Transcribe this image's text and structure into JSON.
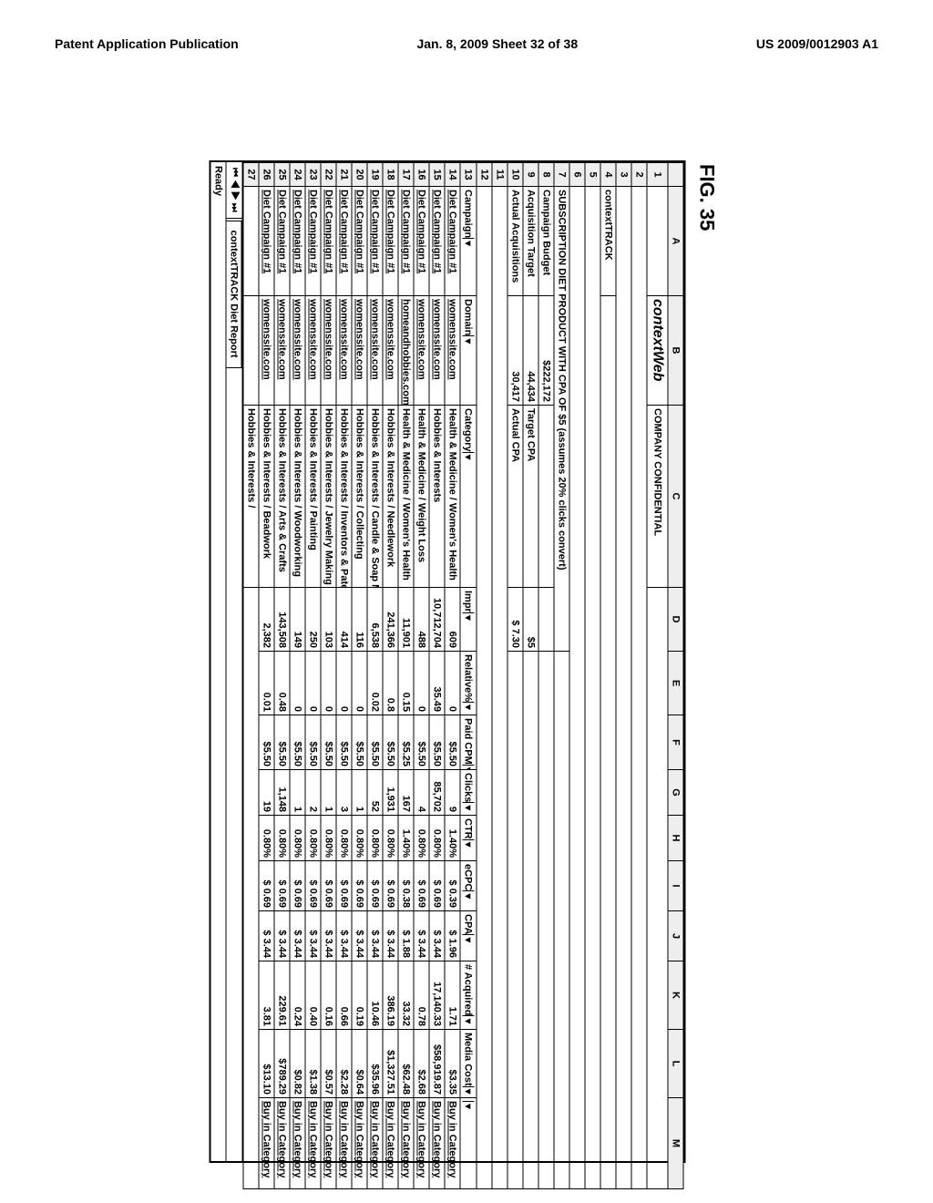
{
  "header": {
    "left": "Patent Application Publication",
    "center": "Jan. 8, 2009  Sheet 32 of 38",
    "right": "US 2009/0012903 A1"
  },
  "figure_label": "FIG. 35",
  "column_letters": [
    "A",
    "B",
    "C",
    "D",
    "E",
    "F",
    "G",
    "H",
    "I",
    "J",
    "K",
    "L",
    "M"
  ],
  "top_block": {
    "brand": "contextWeb",
    "confidential": "COMPANY CONFIDENTIAL",
    "product": "contextTRACK",
    "title": "SUBSCRIPTION DIET PRODUCT WITH CPA OF $5 (assumes 20% clicks convert)",
    "rows": [
      {
        "n": "8",
        "label": "Campaign Budget",
        "val": "$222,172"
      },
      {
        "n": "9",
        "label": "Acquisition Target",
        "val": "44,434",
        "c": "Target CPA",
        "d": "$5"
      },
      {
        "n": "10",
        "label": "Actual Acquisitions",
        "val": "30,417",
        "c": "Actual CPA",
        "d": "$   7.30"
      }
    ]
  },
  "columns_row": {
    "n": "13",
    "labels": [
      "Campaign",
      "Domain",
      "Category",
      "Impr",
      "Relative%",
      "Paid CPM",
      "Clicks",
      "CTR",
      "eCPC",
      "CPA",
      "# Acquired",
      "Media Cost",
      ""
    ]
  },
  "data_rows": [
    {
      "n": "14",
      "camp": "Diet Campaign #1",
      "dom": "womenssite.com",
      "cat": "Health & Medicine / Women's Health",
      "impr": "609",
      "rel": "0",
      "cpm": "$5.50",
      "clk": "9",
      "ctr": "1.40%",
      "ecpc": "$  0.39",
      "cpa": "$   1.96",
      "acq": "1.71",
      "cost": "$3.35",
      "act": "Buy in Category"
    },
    {
      "n": "15",
      "camp": "Diet Campaign #1",
      "dom": "womenssite.com",
      "cat": "Hobbies & Interests",
      "impr": "10,712,704",
      "rel": "35.49",
      "cpm": "$5.50",
      "clk": "85,702",
      "ctr": "0.80%",
      "ecpc": "$  0.69",
      "cpa": "$   3.44",
      "acq": "17,140.33",
      "cost": "$58,919.87",
      "act": "Buy in Category"
    },
    {
      "n": "16",
      "camp": "Diet Campaign #1",
      "dom": "womenssite.com",
      "cat": "Health & Medicine / Weight Loss",
      "impr": "488",
      "rel": "0",
      "cpm": "$5.50",
      "clk": "4",
      "ctr": "0.80%",
      "ecpc": "$  0.69",
      "cpa": "$   3.44",
      "acq": "0.78",
      "cost": "$2.68",
      "act": "Buy in Category"
    },
    {
      "n": "17",
      "camp": "Diet Campaign #1",
      "dom": "homeandhobbies.com",
      "cat": "Health & Medicine / Women's Health",
      "impr": "11,901",
      "rel": "0.15",
      "cpm": "$5.25",
      "clk": "167",
      "ctr": "1.40%",
      "ecpc": "$  0.38",
      "cpa": "$   1.88",
      "acq": "33.32",
      "cost": "$62.48",
      "act": "Buy in Category"
    },
    {
      "n": "18",
      "camp": "Diet Campaign #1",
      "dom": "womenssite.com",
      "cat": "Hobbies & Interests / Needlework",
      "impr": "241,366",
      "rel": "0.8",
      "cpm": "$5.50",
      "clk": "1,931",
      "ctr": "0.80%",
      "ecpc": "$  0.69",
      "cpa": "$   3.44",
      "acq": "386.19",
      "cost": "$1,327.51",
      "act": "Buy in Category"
    },
    {
      "n": "19",
      "camp": "Diet Campaign #1",
      "dom": "womenssite.com",
      "cat": "Hobbies & Interests / Candle & Soap Making",
      "impr": "6,538",
      "rel": "0.02",
      "cpm": "$5.50",
      "clk": "52",
      "ctr": "0.80%",
      "ecpc": "$  0.69",
      "cpa": "$   3.44",
      "acq": "10.46",
      "cost": "$35.96",
      "act": "Buy in Category"
    },
    {
      "n": "20",
      "camp": "Diet Campaign #1",
      "dom": "womenssite.com",
      "cat": "Hobbies & Interests / Collecting",
      "impr": "116",
      "rel": "0",
      "cpm": "$5.50",
      "clk": "1",
      "ctr": "0.80%",
      "ecpc": "$  0.69",
      "cpa": "$   3.44",
      "acq": "0.19",
      "cost": "$0.64",
      "act": "Buy in Category"
    },
    {
      "n": "21",
      "camp": "Diet Campaign #1",
      "dom": "womenssite.com",
      "cat": "Hobbies & Interests / Inventors & Patents",
      "impr": "414",
      "rel": "0",
      "cpm": "$5.50",
      "clk": "3",
      "ctr": "0.80%",
      "ecpc": "$  0.69",
      "cpa": "$   3.44",
      "acq": "0.66",
      "cost": "$2.28",
      "act": "Buy in Category"
    },
    {
      "n": "22",
      "camp": "Diet Campaign #1",
      "dom": "womenssite.com",
      "cat": "Hobbies & Interests / Jewelry Making",
      "impr": "103",
      "rel": "0",
      "cpm": "$5.50",
      "clk": "1",
      "ctr": "0.80%",
      "ecpc": "$  0.69",
      "cpa": "$   3.44",
      "acq": "0.16",
      "cost": "$0.57",
      "act": "Buy in Category"
    },
    {
      "n": "23",
      "camp": "Diet Campaign #1",
      "dom": "womenssite.com",
      "cat": "Hobbies & Interests / Painting",
      "impr": "250",
      "rel": "0",
      "cpm": "$5.50",
      "clk": "2",
      "ctr": "0.80%",
      "ecpc": "$  0.69",
      "cpa": "$   3.44",
      "acq": "0.40",
      "cost": "$1.38",
      "act": "Buy in Category"
    },
    {
      "n": "24",
      "camp": "Diet Campaign #1",
      "dom": "womenssite.com",
      "cat": "Hobbies & Interests / Woodworking",
      "impr": "149",
      "rel": "0",
      "cpm": "$5.50",
      "clk": "1",
      "ctr": "0.80%",
      "ecpc": "$  0.69",
      "cpa": "$   3.44",
      "acq": "0.24",
      "cost": "$0.82",
      "act": "Buy in Category"
    },
    {
      "n": "25",
      "camp": "Diet Campaign #1",
      "dom": "womenssite.com",
      "cat": "Hobbies & Interests / Arts & Crafts",
      "impr": "143,508",
      "rel": "0.48",
      "cpm": "$5.50",
      "clk": "1,148",
      "ctr": "0.80%",
      "ecpc": "$  0.69",
      "cpa": "$   3.44",
      "acq": "229.61",
      "cost": "$789.29",
      "act": "Buy in Category"
    },
    {
      "n": "26",
      "camp": "Diet Campaign #1",
      "dom": "womenssite.com",
      "cat": "Hobbies & Interests / Beadwork",
      "impr": "2,382",
      "rel": "0.01",
      "cpm": "$5.50",
      "clk": "19",
      "ctr": "0.80%",
      "ecpc": "$  0.69",
      "cpa": "$   3.44",
      "acq": "3.81",
      "cost": "$13.10",
      "act": "Buy in Category"
    }
  ],
  "partial_row": {
    "n": "27",
    "cat": "Hobbies & Interests /"
  },
  "tab": {
    "nav": "⏮ ◀ ▶ ⏭",
    "name": "contextTRACK Diet Report"
  },
  "status": "Ready"
}
